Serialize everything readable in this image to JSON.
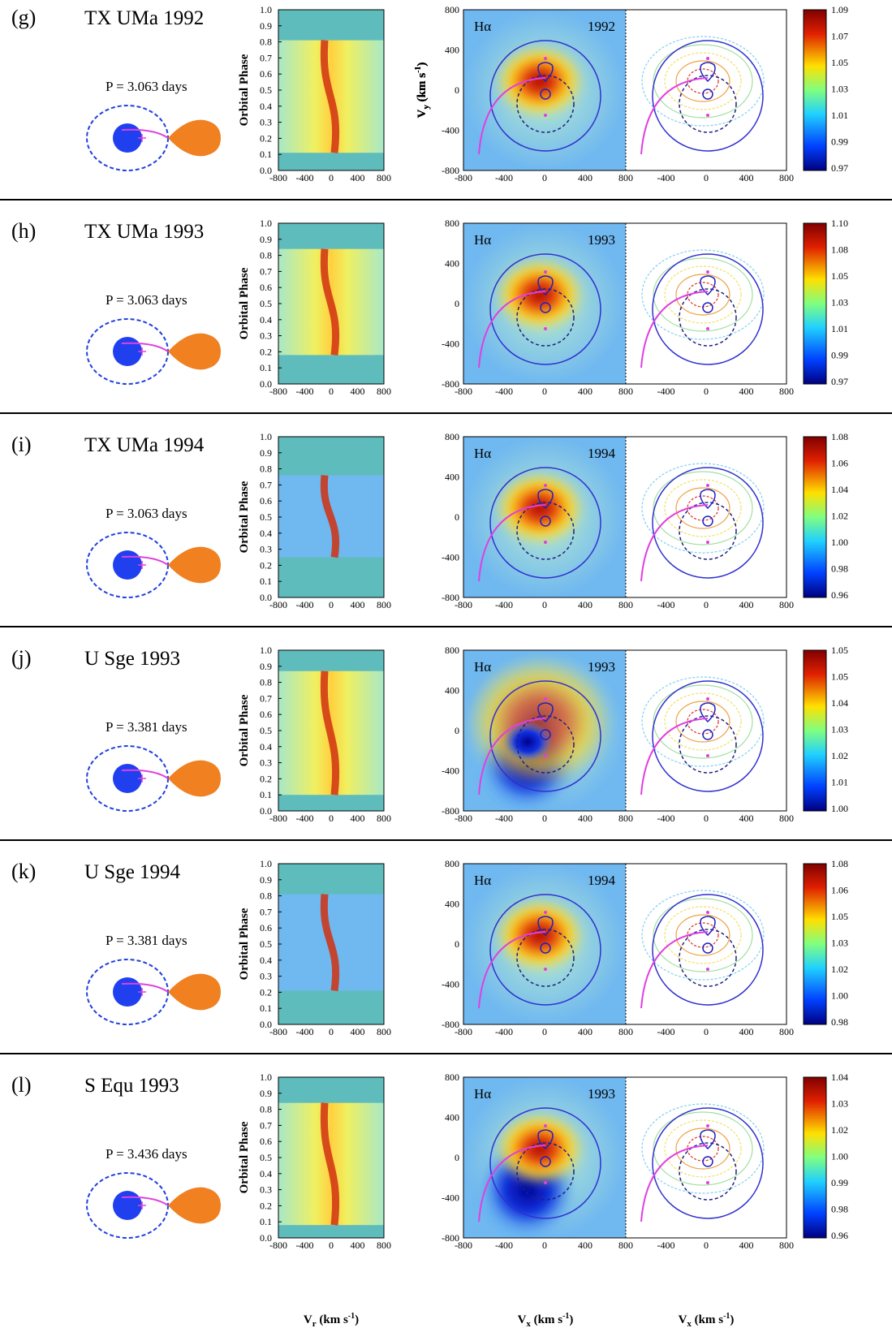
{
  "figure": {
    "phase_ticks": [
      "0.0",
      "0.1",
      "0.2",
      "0.3",
      "0.4",
      "0.5",
      "0.6",
      "0.7",
      "0.8",
      "0.9",
      "1.0"
    ],
    "v_ticks": [
      "-800",
      "-400",
      "0",
      "400",
      "800"
    ],
    "phase_label": "Orbital Phase",
    "vy_label": {
      "main": "V",
      "sub": "y",
      "unit": " (km s",
      "sup": "-1",
      "close": ")"
    },
    "vr_label": {
      "main": "V",
      "sub": "r",
      "unit": " (km s",
      "sup": "-1",
      "close": ")"
    },
    "vx_label": {
      "main": "V",
      "sub": "x",
      "unit": " (km s",
      "sup": "-1",
      "close": ")"
    },
    "line": "Hα",
    "panels": [
      {
        "label": "(g)",
        "title": "TX UMa  1992",
        "period": "P = 3.063 days",
        "year": "1992",
        "colorbar": [
          "1.09",
          "1.07",
          "1.05",
          "1.03",
          "1.01",
          "0.99",
          "0.97"
        ]
      },
      {
        "label": "(h)",
        "title": "TX UMa  1993",
        "period": "P = 3.063 days",
        "year": "1993",
        "colorbar": [
          "1.10",
          "1.08",
          "1.05",
          "1.03",
          "1.01",
          "0.99",
          "0.97"
        ]
      },
      {
        "label": "(i)",
        "title": "TX UMa  1994",
        "period": "P = 3.063 days",
        "year": "1994",
        "colorbar": [
          "1.08",
          "1.06",
          "1.04",
          "1.02",
          "1.00",
          "0.98",
          "0.96"
        ]
      },
      {
        "label": "(j)",
        "title": "U Sge  1993",
        "period": "P = 3.381 days",
        "year": "1993",
        "colorbar": [
          "1.05",
          "1.05",
          "1.04",
          "1.03",
          "1.02",
          "1.01",
          "1.00"
        ]
      },
      {
        "label": "(k)",
        "title": "U Sge  1994",
        "period": "P = 3.381 days",
        "year": "1994",
        "colorbar": [
          "1.08",
          "1.06",
          "1.05",
          "1.03",
          "1.02",
          "1.00",
          "0.98"
        ]
      },
      {
        "label": "(l)",
        "title": "S Equ   1993",
        "period": "P = 3.436 days",
        "year": "1993",
        "colorbar": [
          "1.04",
          "1.03",
          "1.02",
          "1.00",
          "0.99",
          "0.98",
          "0.96"
        ]
      }
    ]
  }
}
